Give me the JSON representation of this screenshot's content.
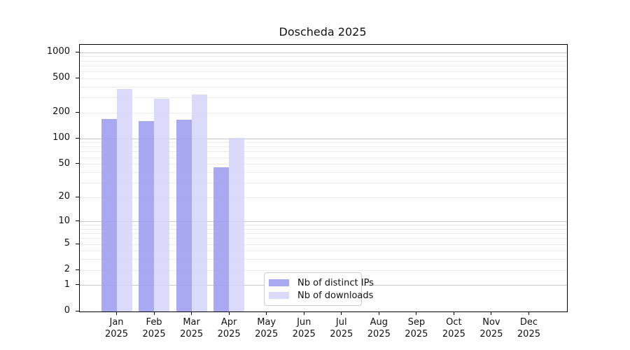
{
  "chart_data": {
    "type": "bar",
    "title": "Doscheda 2025",
    "categories": [
      "Jan 2025",
      "Feb 2025",
      "Mar 2025",
      "Apr 2025",
      "May 2025",
      "Jun 2025",
      "Jul 2025",
      "Aug 2025",
      "Sep 2025",
      "Oct 2025",
      "Nov 2025",
      "Dec 2025"
    ],
    "series": [
      {
        "name": "Nb of distinct IPs",
        "color": "#9d9def",
        "values": [
          170,
          161,
          168,
          46,
          null,
          null,
          null,
          null,
          null,
          null,
          null,
          null
        ]
      },
      {
        "name": "Nb of downloads",
        "color": "#d5d5f9",
        "values": [
          380,
          290,
          330,
          103,
          null,
          null,
          null,
          null,
          null,
          null,
          null,
          null
        ]
      }
    ],
    "yscale": "log1p",
    "ylim": [
      0,
      1236
    ],
    "y_ticks": [
      0,
      1,
      2,
      5,
      10,
      20,
      50,
      100,
      200,
      500,
      1000
    ],
    "y_major_gridlines": [
      1,
      10,
      100,
      1000
    ],
    "y_minor_gridlines": [
      2,
      3,
      4,
      5,
      6,
      7,
      8,
      9,
      20,
      30,
      40,
      50,
      60,
      70,
      80,
      90,
      200,
      300,
      400,
      500,
      600,
      700,
      800,
      900
    ],
    "grid": "horizontal-only",
    "legend_position": "inside-bottom-center",
    "xlabel": "",
    "ylabel": ""
  },
  "colors": {
    "background": "#ffffff",
    "axis": "#000000",
    "text": "#111111",
    "grid_major": "#c6c6c6",
    "grid_minor": "#eaeaea",
    "legend_border": "#cccccc"
  }
}
